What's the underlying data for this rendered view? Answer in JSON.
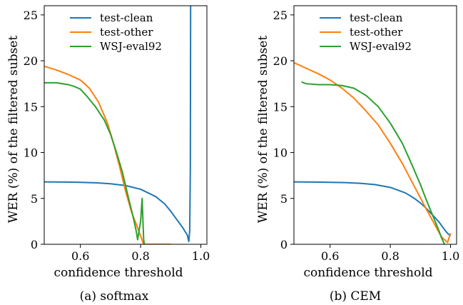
{
  "chart_data": [
    {
      "type": "line",
      "caption": "(a) softmax",
      "xlabel": "confidence threshold",
      "ylabel": "WER (%) of the filtered subset",
      "xlim": [
        0.48,
        1.02
      ],
      "ylim": [
        0,
        26
      ],
      "xticks": [
        0.6,
        0.8,
        1.0
      ],
      "xtick_labels": [
        "0.6",
        "0.8",
        "1.0"
      ],
      "yticks": [
        0,
        5,
        10,
        15,
        20,
        25
      ],
      "ytick_labels": [
        "0",
        "5",
        "10",
        "15",
        "20",
        "25"
      ],
      "grid": false,
      "legend_position": "top-center",
      "series": [
        {
          "name": "test-clean",
          "color": "#1f77b4",
          "x": [
            0.48,
            0.55,
            0.6,
            0.65,
            0.7,
            0.75,
            0.8,
            0.85,
            0.88,
            0.9,
            0.92,
            0.94,
            0.955,
            0.96,
            0.963,
            0.965,
            0.966
          ],
          "y": [
            6.8,
            6.78,
            6.75,
            6.7,
            6.6,
            6.4,
            6.0,
            5.2,
            4.4,
            3.6,
            2.7,
            1.8,
            1.0,
            0.3,
            1.5,
            8.0,
            26.0
          ]
        },
        {
          "name": "test-other",
          "color": "#ff7f0e",
          "x": [
            0.48,
            0.52,
            0.56,
            0.6,
            0.63,
            0.66,
            0.69,
            0.71,
            0.73,
            0.75,
            0.77,
            0.79,
            0.8,
            0.81,
            0.83,
            0.85,
            0.87,
            0.9
          ],
          "y": [
            19.4,
            19.0,
            18.5,
            17.9,
            17.0,
            15.5,
            13.2,
            11.0,
            8.5,
            5.8,
            3.5,
            1.8,
            0.9,
            0.0,
            0.0,
            0.0,
            0.0,
            0.0
          ]
        },
        {
          "name": "WSJ-eval92",
          "color": "#2ca02c",
          "x": [
            0.48,
            0.52,
            0.56,
            0.58,
            0.6,
            0.62,
            0.65,
            0.68,
            0.7,
            0.72,
            0.74,
            0.76,
            0.775,
            0.785,
            0.79,
            0.8,
            0.805,
            0.81,
            0.812,
            0.815
          ],
          "y": [
            17.6,
            17.6,
            17.4,
            17.2,
            16.9,
            16.2,
            15.0,
            13.5,
            12.0,
            10.0,
            7.8,
            5.0,
            3.0,
            1.5,
            0.5,
            2.5,
            5.0,
            0.6,
            0.0,
            0.0
          ]
        }
      ]
    },
    {
      "type": "line",
      "caption": "(b) CEM",
      "xlabel": "confidence threshold",
      "ylabel": "WER (%) of the filtered subset",
      "xlim": [
        0.48,
        1.02
      ],
      "ylim": [
        0,
        26
      ],
      "xticks": [
        0.6,
        0.8,
        1.0
      ],
      "xtick_labels": [
        "0.6",
        "0.8",
        "1.0"
      ],
      "yticks": [
        0,
        5,
        10,
        15,
        20,
        25
      ],
      "ytick_labels": [
        "0",
        "5",
        "10",
        "15",
        "20",
        "25"
      ],
      "grid": false,
      "legend_position": "top-center",
      "series": [
        {
          "name": "test-clean",
          "color": "#1f77b4",
          "x": [
            0.48,
            0.55,
            0.6,
            0.65,
            0.7,
            0.75,
            0.8,
            0.85,
            0.88,
            0.9,
            0.92,
            0.94,
            0.96,
            0.98,
            0.99,
            1.0
          ],
          "y": [
            6.8,
            6.78,
            6.75,
            6.72,
            6.65,
            6.5,
            6.2,
            5.6,
            5.0,
            4.5,
            3.9,
            3.2,
            2.5,
            1.6,
            1.2,
            0.9
          ]
        },
        {
          "name": "test-other",
          "color": "#ff7f0e",
          "x": [
            0.48,
            0.52,
            0.56,
            0.6,
            0.64,
            0.68,
            0.72,
            0.76,
            0.8,
            0.84,
            0.88,
            0.92,
            0.95,
            0.97,
            0.99,
            1.0
          ],
          "y": [
            19.8,
            19.2,
            18.6,
            17.9,
            17.0,
            15.9,
            14.5,
            13.0,
            11.0,
            8.8,
            6.3,
            3.8,
            2.0,
            0.8,
            0.2,
            1.2
          ]
        },
        {
          "name": "WSJ-eval92",
          "color": "#2ca02c",
          "x": [
            0.505,
            0.52,
            0.56,
            0.6,
            0.64,
            0.68,
            0.72,
            0.76,
            0.8,
            0.84,
            0.87,
            0.9,
            0.92,
            0.94,
            0.96,
            0.97,
            0.98
          ],
          "y": [
            17.7,
            17.5,
            17.4,
            17.4,
            17.3,
            17.0,
            16.2,
            15.0,
            13.2,
            11.0,
            8.8,
            6.5,
            4.8,
            3.2,
            1.6,
            0.7,
            0.0
          ]
        }
      ]
    }
  ]
}
